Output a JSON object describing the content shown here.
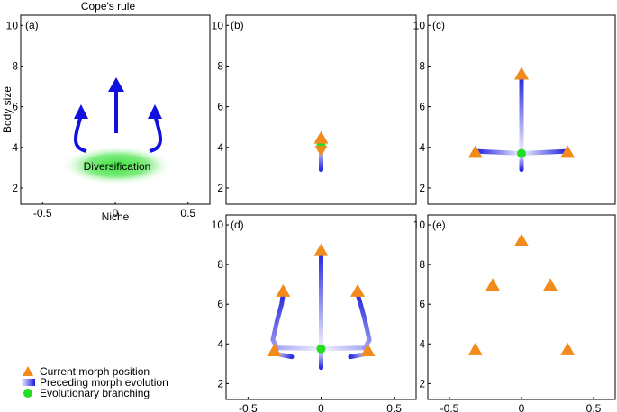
{
  "colors": {
    "arrow": "#1010e0",
    "marker": "#f28a1c",
    "branch": "#22dd22",
    "glow": "#3ee03e",
    "trail": "#2a2ae0"
  },
  "chart_data": [
    {
      "type": "diagram",
      "id": "a",
      "panel_label": "(a)",
      "title": "Cope's rule",
      "xlabel": "Niche",
      "ylabel": "Body size",
      "xlim": [
        -0.65,
        0.65
      ],
      "ylim": [
        1.2,
        10.5
      ],
      "xticks": [
        "-0.5",
        "0",
        "0.5"
      ],
      "yticks": [
        "2",
        "4",
        "6",
        "8",
        "10"
      ],
      "annotation": "Diversification"
    },
    {
      "type": "scatter",
      "id": "b",
      "panel_label": "(b)",
      "xlim": [
        -0.65,
        0.65
      ],
      "ylim": [
        1.2,
        10.5
      ],
      "yticks": [
        "2",
        "4",
        "6",
        "8",
        "10"
      ],
      "morphs": [
        {
          "x": 0,
          "y": 4.45,
          "dir": "up"
        },
        {
          "x": 0,
          "y": 3.85,
          "dir": "down"
        }
      ],
      "branching": [
        {
          "x": 0,
          "y": 4.1
        }
      ],
      "trails": [
        [
          [
            0,
            4.1
          ],
          [
            0,
            4.4
          ]
        ],
        [
          [
            0,
            4.1
          ],
          [
            0,
            2.9
          ]
        ]
      ]
    },
    {
      "type": "scatter",
      "id": "c",
      "panel_label": "(c)",
      "xlim": [
        -0.65,
        0.65
      ],
      "ylim": [
        1.2,
        10.5
      ],
      "yticks": [
        "2",
        "4",
        "6",
        "8",
        "10"
      ],
      "morphs": [
        {
          "x": -0.32,
          "y": 3.75
        },
        {
          "x": 0.32,
          "y": 3.75
        },
        {
          "x": 0,
          "y": 7.6
        }
      ],
      "branching": [
        {
          "x": 0,
          "y": 3.7
        }
      ],
      "trails": [
        [
          [
            0,
            3.7
          ],
          [
            -0.3,
            3.8
          ]
        ],
        [
          [
            0,
            3.7
          ],
          [
            0.3,
            3.8
          ]
        ],
        [
          [
            0,
            3.7
          ],
          [
            0,
            7.4
          ]
        ],
        [
          [
            0,
            3.7
          ],
          [
            0,
            2.9
          ]
        ]
      ]
    },
    {
      "type": "scatter",
      "id": "d",
      "panel_label": "(d)",
      "xlim": [
        -0.65,
        0.65
      ],
      "ylim": [
        1.2,
        10.5
      ],
      "xticks": [
        "-0.5",
        "0",
        "0.5"
      ],
      "yticks": [
        "2",
        "4",
        "6",
        "8",
        "10"
      ],
      "morphs": [
        {
          "x": -0.32,
          "y": 3.65
        },
        {
          "x": -0.26,
          "y": 6.65
        },
        {
          "x": 0.25,
          "y": 6.65
        },
        {
          "x": 0.32,
          "y": 3.65
        },
        {
          "x": 0,
          "y": 8.7
        }
      ],
      "branching": [
        {
          "x": 0,
          "y": 3.75
        }
      ],
      "trails": [
        [
          [
            0,
            3.75
          ],
          [
            -0.3,
            3.8
          ],
          [
            -0.33,
            4.2
          ],
          [
            -0.3,
            5.2
          ],
          [
            -0.27,
            6.0
          ],
          [
            -0.26,
            6.5
          ]
        ],
        [
          [
            -0.3,
            3.8
          ],
          [
            -0.31,
            3.5
          ],
          [
            -0.2,
            3.35
          ]
        ],
        [
          [
            0,
            3.75
          ],
          [
            0.3,
            3.8
          ],
          [
            0.33,
            4.2
          ],
          [
            0.3,
            5.2
          ],
          [
            0.27,
            6.0
          ],
          [
            0.25,
            6.5
          ]
        ],
        [
          [
            0.3,
            3.8
          ],
          [
            0.31,
            3.5
          ],
          [
            0.2,
            3.35
          ]
        ],
        [
          [
            0,
            3.75
          ],
          [
            0,
            8.5
          ]
        ],
        [
          [
            0,
            3.75
          ],
          [
            0,
            2.8
          ]
        ]
      ]
    },
    {
      "type": "scatter",
      "id": "e",
      "panel_label": "(e)",
      "xlim": [
        -0.65,
        0.65
      ],
      "ylim": [
        1.2,
        10.5
      ],
      "xticks": [
        "-0.5",
        "0",
        "0.5"
      ],
      "yticks": [
        "2",
        "4",
        "6",
        "8",
        "10"
      ],
      "morphs": [
        {
          "x": -0.32,
          "y": 3.7
        },
        {
          "x": -0.2,
          "y": 6.95
        },
        {
          "x": 0.2,
          "y": 6.95
        },
        {
          "x": 0.32,
          "y": 3.7
        },
        {
          "x": 0,
          "y": 9.2
        }
      ],
      "branching": [],
      "trails": []
    }
  ],
  "legend": {
    "entries": [
      {
        "label": "Current morph position"
      },
      {
        "label": "Preceding morph evolution"
      },
      {
        "label": "Evolutionary branching"
      }
    ]
  }
}
